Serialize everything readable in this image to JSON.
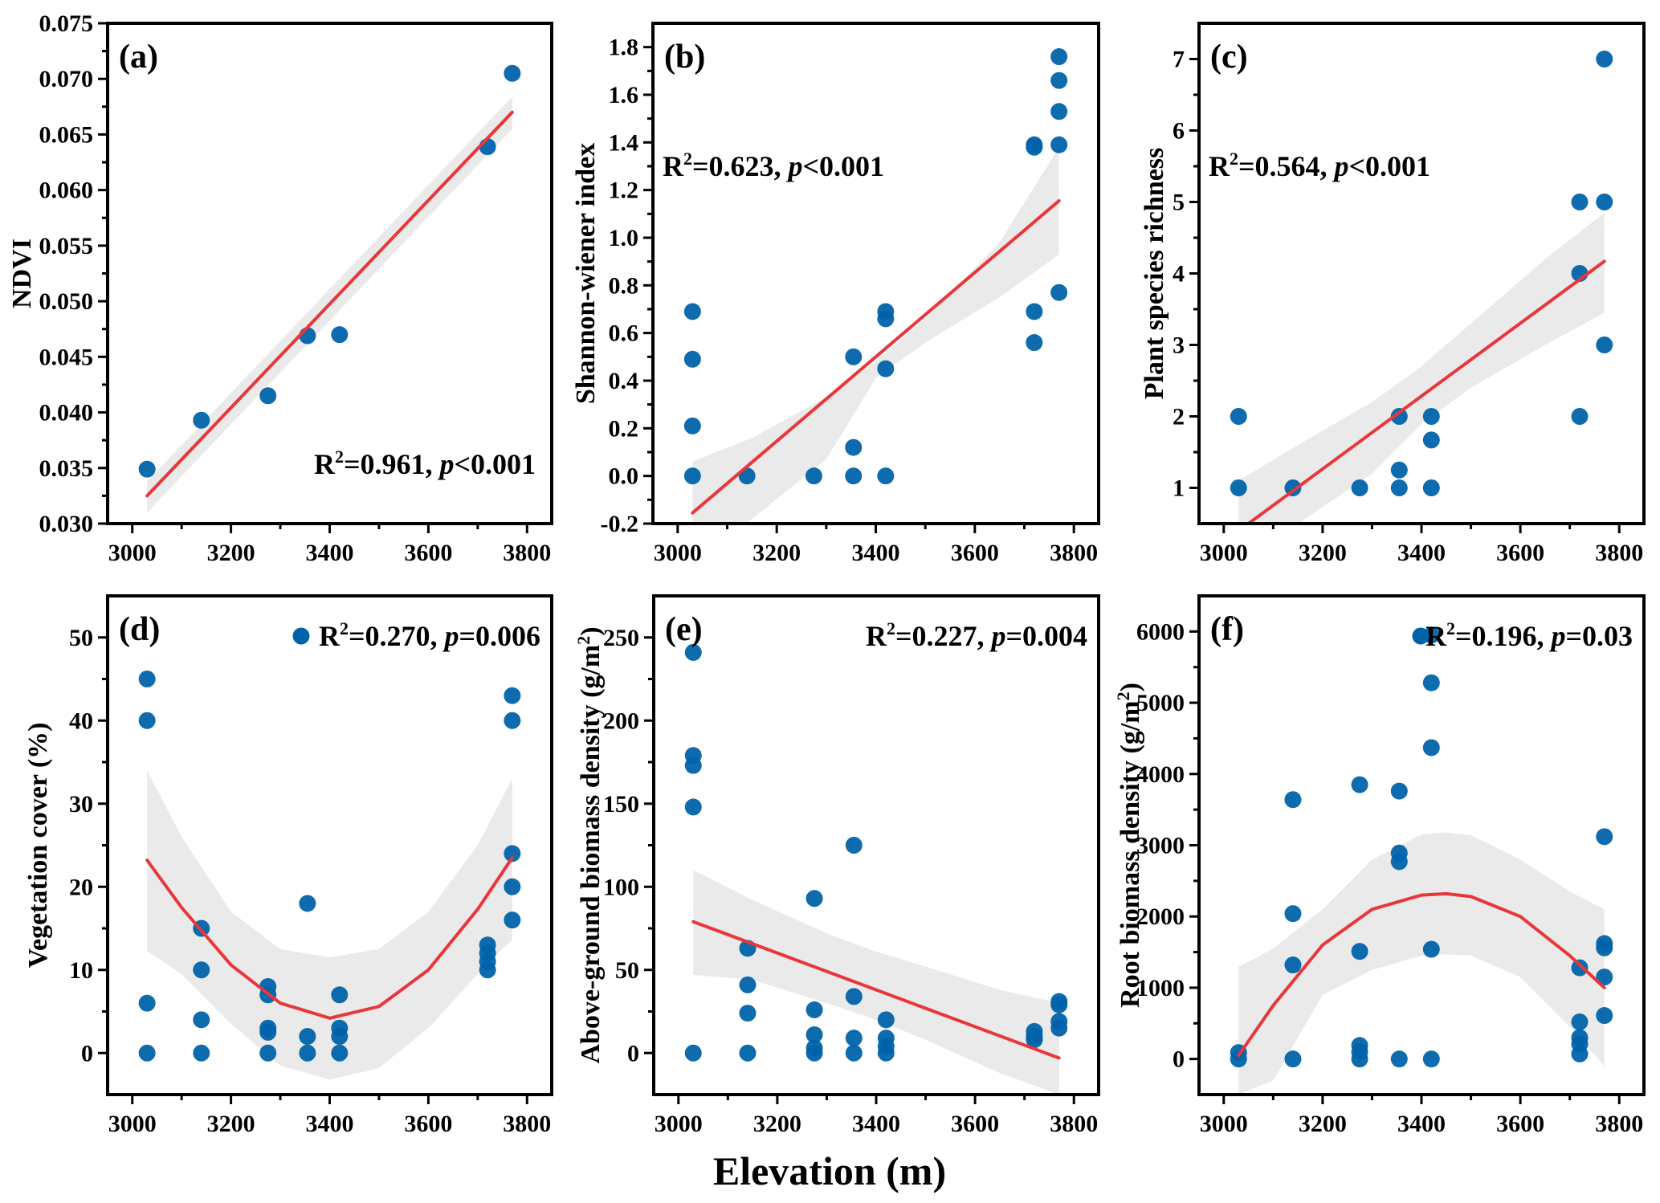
{
  "figure": {
    "shared_xlabel": "Elevation (m)"
  },
  "colors": {
    "marker": "#0063aa",
    "fit_line": "#e8363a",
    "confidence_band": "#e6e6e6",
    "axes": "#000000"
  },
  "chart_data": [
    {
      "type": "scatter",
      "panel": "(a)",
      "ylabel": "NDVI",
      "xlabel": "Elevation (m)",
      "xlim": [
        2950,
        3850
      ],
      "ylim": [
        0.03,
        0.075
      ],
      "xticks": [
        3000,
        3200,
        3400,
        3600,
        3800
      ],
      "yticks": [
        0.03,
        0.035,
        0.04,
        0.045,
        0.05,
        0.055,
        0.06,
        0.065,
        0.07,
        0.075
      ],
      "ytick_labels": [
        "0.030",
        "0.035",
        "0.040",
        "0.045",
        "0.050",
        "0.055",
        "0.060",
        "0.065",
        "0.070",
        "0.075"
      ],
      "stat_text": {
        "r2": "R",
        "sup": "2",
        "mid": "=0.961, ",
        "p": "p",
        "tail": "<0.001"
      },
      "stat_position": "bottom-right",
      "points": [
        [
          3030,
          0.0349
        ],
        [
          3140,
          0.0393
        ],
        [
          3275,
          0.0415
        ],
        [
          3355,
          0.0469
        ],
        [
          3420,
          0.047
        ],
        [
          3720,
          0.0639
        ],
        [
          3770,
          0.0705
        ]
      ],
      "fit": {
        "kind": "linear",
        "x": [
          3030,
          3770
        ],
        "y": [
          0.0325,
          0.067
        ]
      },
      "band": {
        "x": [
          3030,
          3770
        ],
        "upper": [
          0.0338,
          0.0684
        ],
        "lower": [
          0.031,
          0.0655
        ]
      }
    },
    {
      "type": "scatter",
      "panel": "(b)",
      "ylabel": "Shannon-wiener index",
      "xlabel": "Elevation (m)",
      "xlim": [
        2950,
        3850
      ],
      "ylim": [
        -0.2,
        1.9
      ],
      "xticks": [
        3000,
        3200,
        3400,
        3600,
        3800
      ],
      "yticks": [
        -0.2,
        0.0,
        0.2,
        0.4,
        0.6,
        0.8,
        1.0,
        1.2,
        1.4,
        1.6,
        1.8
      ],
      "ytick_labels": [
        "-0.2",
        "0.0",
        "0.2",
        "0.4",
        "0.6",
        "0.8",
        "1.0",
        "1.2",
        "1.4",
        "1.6",
        "1.8"
      ],
      "stat_text": {
        "r2": "R",
        "sup": "2",
        "mid": "=0.623, ",
        "p": "p",
        "tail": "<0.001"
      },
      "stat_position": "upper-left",
      "points": [
        [
          3030,
          0.69
        ],
        [
          3030,
          0.49
        ],
        [
          3030,
          0.21
        ],
        [
          3030,
          0.0
        ],
        [
          3140,
          0.0
        ],
        [
          3275,
          0.0
        ],
        [
          3355,
          0.5
        ],
        [
          3355,
          0.12
        ],
        [
          3355,
          0.0
        ],
        [
          3420,
          0.69
        ],
        [
          3420,
          0.66
        ],
        [
          3420,
          0.45
        ],
        [
          3420,
          0.0
        ],
        [
          3720,
          1.39
        ],
        [
          3720,
          1.38
        ],
        [
          3720,
          0.69
        ],
        [
          3720,
          0.56
        ],
        [
          3770,
          1.76
        ],
        [
          3770,
          1.66
        ],
        [
          3770,
          1.53
        ],
        [
          3770,
          1.39
        ],
        [
          3770,
          0.77
        ]
      ],
      "fit": {
        "kind": "linear",
        "x": [
          3030,
          3770
        ],
        "y": [
          -0.155,
          1.155
        ]
      },
      "band": {
        "x": [
          3030,
          3150,
          3300,
          3400,
          3500,
          3650,
          3770
        ],
        "upper": [
          0.06,
          0.16,
          0.33,
          0.48,
          0.66,
          0.98,
          1.38
        ],
        "lower": [
          -0.37,
          -0.18,
          0.07,
          0.41,
          0.56,
          0.75,
          0.93
        ]
      }
    },
    {
      "type": "scatter",
      "panel": "(c)",
      "ylabel": "Plant species richness",
      "xlabel": "Elevation (m)",
      "xlim": [
        2950,
        3850
      ],
      "ylim": [
        0.5,
        7.5
      ],
      "xticks": [
        3000,
        3200,
        3400,
        3600,
        3800
      ],
      "yticks": [
        1,
        2,
        3,
        4,
        5,
        6,
        7
      ],
      "ytick_labels": [
        "1",
        "2",
        "3",
        "4",
        "5",
        "6",
        "7"
      ],
      "stat_text": {
        "r2": "R",
        "sup": "2",
        "mid": "=0.564, ",
        "p": "p",
        "tail": "<0.001"
      },
      "stat_position": "upper-left",
      "points": [
        [
          3030,
          2
        ],
        [
          3030,
          1
        ],
        [
          3140,
          1
        ],
        [
          3275,
          1
        ],
        [
          3355,
          2
        ],
        [
          3355,
          1.25
        ],
        [
          3355,
          1
        ],
        [
          3420,
          2
        ],
        [
          3420,
          1.67
        ],
        [
          3420,
          1
        ],
        [
          3720,
          5
        ],
        [
          3720,
          4
        ],
        [
          3720,
          2
        ],
        [
          3770,
          7
        ],
        [
          3770,
          5
        ],
        [
          3770,
          3
        ]
      ],
      "fit": {
        "kind": "linear",
        "x": [
          3050,
          3770
        ],
        "y": [
          0.5,
          4.17
        ]
      },
      "band": {
        "x": [
          3030,
          3150,
          3300,
          3400,
          3500,
          3650,
          3770
        ],
        "upper": [
          1.1,
          1.6,
          2.2,
          2.7,
          3.3,
          4.2,
          4.85
        ],
        "lower": [
          0.5,
          0.5,
          1.2,
          1.9,
          2.4,
          3.0,
          3.45
        ]
      }
    },
    {
      "type": "scatter",
      "panel": "(d)",
      "ylabel": "Vegetation cover (%)",
      "xlabel": "Elevation (m)",
      "xlim": [
        2950,
        3850
      ],
      "ylim": [
        -5,
        55
      ],
      "xticks": [
        3000,
        3200,
        3400,
        3600,
        3800
      ],
      "yticks": [
        0,
        10,
        20,
        30,
        40,
        50
      ],
      "ytick_labels": [
        "0",
        "10",
        "20",
        "30",
        "40",
        "50"
      ],
      "stat_text": {
        "r2": "R",
        "sup": "2",
        "mid": "=0.270, ",
        "p": "p",
        "tail": "=0.006"
      },
      "stat_position": "top-right",
      "legend_marker": true,
      "points": [
        [
          3030,
          45
        ],
        [
          3030,
          40
        ],
        [
          3030,
          6
        ],
        [
          3030,
          0
        ],
        [
          3140,
          15
        ],
        [
          3140,
          10
        ],
        [
          3140,
          4
        ],
        [
          3140,
          0
        ],
        [
          3275,
          8
        ],
        [
          3275,
          7
        ],
        [
          3275,
          3
        ],
        [
          3275,
          2.5
        ],
        [
          3275,
          0
        ],
        [
          3355,
          18
        ],
        [
          3355,
          2
        ],
        [
          3355,
          0
        ],
        [
          3420,
          7
        ],
        [
          3420,
          3
        ],
        [
          3420,
          2
        ],
        [
          3420,
          0
        ],
        [
          3720,
          13
        ],
        [
          3720,
          12
        ],
        [
          3720,
          11
        ],
        [
          3720,
          10
        ],
        [
          3770,
          43
        ],
        [
          3770,
          40
        ],
        [
          3770,
          24
        ],
        [
          3770,
          20
        ],
        [
          3770,
          16
        ]
      ],
      "fit": {
        "kind": "quadratic",
        "x": [
          3030,
          3100,
          3200,
          3300,
          3400,
          3500,
          3600,
          3700,
          3770
        ],
        "y": [
          23.2,
          17.5,
          10.6,
          6.0,
          4.2,
          5.6,
          10.0,
          17.3,
          23.5
        ]
      },
      "band": {
        "x": [
          3030,
          3100,
          3200,
          3300,
          3400,
          3500,
          3600,
          3700,
          3770
        ],
        "upper": [
          34,
          26,
          17,
          12.5,
          11.5,
          12.5,
          17,
          25,
          33
        ],
        "lower": [
          12.3,
          9.5,
          3.5,
          -1.5,
          -3.2,
          -1.8,
          3,
          9.5,
          13.7
        ]
      }
    },
    {
      "type": "scatter",
      "panel": "(e)",
      "ylabel": "Above-ground biomass density (g/m",
      "ylabel_sup": "2",
      "ylabel_tail": ")",
      "xlabel": "Elevation (m)",
      "xlim": [
        2950,
        3850
      ],
      "ylim": [
        -25,
        275
      ],
      "xticks": [
        3000,
        3200,
        3400,
        3600,
        3800
      ],
      "yticks": [
        0,
        50,
        100,
        150,
        200,
        250
      ],
      "ytick_labels": [
        "0",
        "50",
        "100",
        "150",
        "200",
        "250"
      ],
      "stat_text": {
        "r2": "R",
        "sup": "2",
        "mid": "=0.227, ",
        "p": "p",
        "tail": "=0.004"
      },
      "stat_position": "top-right",
      "points": [
        [
          3030,
          241
        ],
        [
          3030,
          179
        ],
        [
          3030,
          173
        ],
        [
          3030,
          148
        ],
        [
          3030,
          0
        ],
        [
          3140,
          63
        ],
        [
          3140,
          41
        ],
        [
          3140,
          24
        ],
        [
          3140,
          0
        ],
        [
          3275,
          93
        ],
        [
          3275,
          26
        ],
        [
          3275,
          11
        ],
        [
          3275,
          3
        ],
        [
          3275,
          0
        ],
        [
          3355,
          125
        ],
        [
          3355,
          34
        ],
        [
          3355,
          9
        ],
        [
          3355,
          0
        ],
        [
          3420,
          20
        ],
        [
          3420,
          9
        ],
        [
          3420,
          4
        ],
        [
          3420,
          0
        ],
        [
          3720,
          13
        ],
        [
          3720,
          10
        ],
        [
          3720,
          8
        ],
        [
          3770,
          31
        ],
        [
          3770,
          29
        ],
        [
          3770,
          19
        ],
        [
          3770,
          15
        ]
      ],
      "fit": {
        "kind": "linear",
        "x": [
          3030,
          3770
        ],
        "y": [
          79,
          -3
        ]
      },
      "band": {
        "x": [
          3030,
          3150,
          3300,
          3400,
          3500,
          3650,
          3770
        ],
        "upper": [
          110,
          92,
          72,
          61,
          52,
          38,
          30
        ],
        "lower": [
          47,
          44,
          30,
          20,
          8,
          -12,
          -25
        ]
      }
    },
    {
      "type": "scatter",
      "panel": "(f)",
      "ylabel": "Root biomass density (g/m",
      "ylabel_sup": "2",
      "ylabel_tail": ")",
      "xlabel": "Elevation (m)",
      "xlim": [
        2950,
        3850
      ],
      "ylim": [
        -500,
        6500
      ],
      "xticks": [
        3000,
        3200,
        3400,
        3600,
        3800
      ],
      "yticks": [
        0,
        1000,
        2000,
        3000,
        4000,
        5000,
        6000
      ],
      "ytick_labels": [
        "0",
        "1000",
        "2000",
        "3000",
        "4000",
        "5000",
        "6000"
      ],
      "stat_text": {
        "r2": "R",
        "sup": "2",
        "mid": "=0.196, ",
        "p": "p",
        "tail": "=0.03"
      },
      "stat_position": "top-right",
      "legend_marker": true,
      "points": [
        [
          3030,
          90
        ],
        [
          3030,
          0
        ],
        [
          3140,
          3640
        ],
        [
          3140,
          2040
        ],
        [
          3140,
          1320
        ],
        [
          3140,
          0
        ],
        [
          3275,
          3850
        ],
        [
          3275,
          1510
        ],
        [
          3275,
          190
        ],
        [
          3275,
          100
        ],
        [
          3275,
          0
        ],
        [
          3355,
          3760
        ],
        [
          3355,
          2890
        ],
        [
          3355,
          2770
        ],
        [
          3355,
          0
        ],
        [
          3420,
          5950
        ],
        [
          3420,
          5280
        ],
        [
          3420,
          4370
        ],
        [
          3420,
          1540
        ],
        [
          3420,
          0
        ],
        [
          3720,
          1280
        ],
        [
          3720,
          520
        ],
        [
          3720,
          300
        ],
        [
          3720,
          210
        ],
        [
          3720,
          70
        ],
        [
          3770,
          3120
        ],
        [
          3770,
          1620
        ],
        [
          3770,
          1560
        ],
        [
          3770,
          1150
        ],
        [
          3770,
          610
        ]
      ],
      "fit": {
        "kind": "quadratic",
        "x": [
          3030,
          3100,
          3200,
          3300,
          3400,
          3450,
          3500,
          3600,
          3700,
          3770
        ],
        "y": [
          50,
          750,
          1600,
          2100,
          2300,
          2320,
          2280,
          2000,
          1450,
          1000
        ]
      },
      "band": {
        "x": [
          3030,
          3100,
          3200,
          3300,
          3400,
          3450,
          3500,
          3600,
          3700,
          3770
        ],
        "upper": [
          1290,
          1550,
          2100,
          2800,
          3150,
          3180,
          3140,
          2800,
          2350,
          2100
        ],
        "lower": [
          -500,
          -300,
          900,
          1250,
          1450,
          1470,
          1450,
          1150,
          450,
          -100
        ]
      }
    }
  ]
}
